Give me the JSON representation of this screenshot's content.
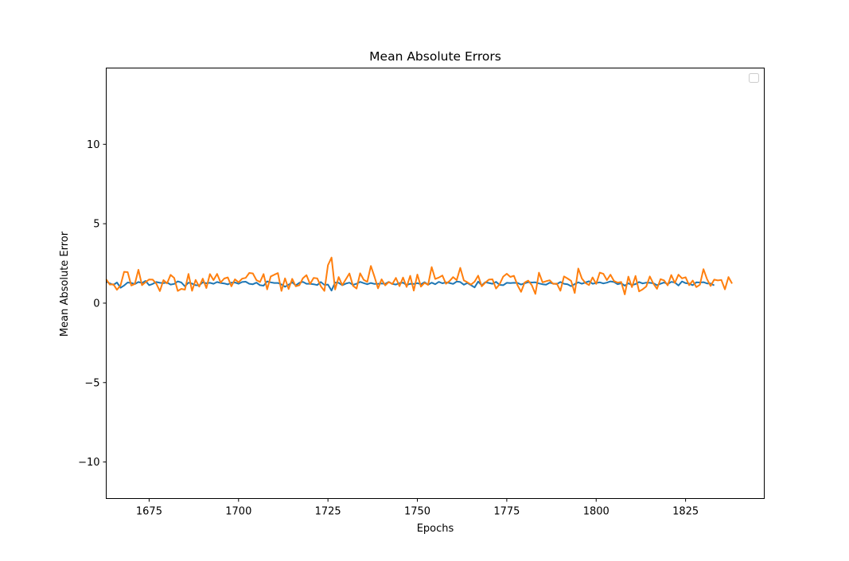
{
  "chart_data": {
    "type": "line",
    "title": "Mean Absolute Errors",
    "xlabel": "Epochs",
    "ylabel": "Mean Absolute Error",
    "xlim": [
      1663,
      1847
    ],
    "ylim": [
      -12.3,
      14.8
    ],
    "xticks": [
      1675,
      1700,
      1725,
      1750,
      1775,
      1800,
      1825
    ],
    "yticks": [
      -10,
      -5,
      0,
      5,
      10
    ],
    "ytick_labels": [
      "−10",
      "−5",
      "0",
      "5",
      "10"
    ],
    "grid": false,
    "legend": {
      "placement": "upper-right",
      "entries": []
    },
    "x_start": 1663,
    "series": [
      {
        "color": "#1f77b4",
        "values": [
          1.34,
          1.25,
          1.15,
          1.3,
          0.97,
          1.11,
          1.3,
          1.27,
          1.2,
          1.33,
          1.27,
          1.4,
          1.13,
          1.21,
          1.33,
          1.28,
          1.26,
          1.3,
          1.17,
          1.21,
          1.37,
          1.3,
          1.06,
          1.29,
          1.23,
          1.13,
          1.12,
          1.31,
          1.25,
          1.28,
          1.22,
          1.33,
          1.27,
          1.24,
          1.18,
          1.29,
          1.3,
          1.22,
          1.33,
          1.35,
          1.22,
          1.19,
          1.29,
          1.13,
          1.1,
          1.37,
          1.31,
          1.27,
          1.27,
          1.18,
          1.03,
          1.16,
          1.31,
          1.12,
          1.28,
          1.34,
          1.22,
          1.22,
          1.19,
          1.14,
          1.33,
          1.15,
          1.17,
          0.79,
          1.3,
          1.28,
          1.13,
          1.23,
          1.29,
          1.15,
          1.22,
          1.34,
          1.26,
          1.19,
          1.27,
          1.21,
          1.22,
          1.24,
          1.21,
          1.34,
          1.21,
          1.17,
          1.26,
          1.29,
          1.14,
          1.22,
          1.21,
          1.26,
          1.19,
          1.32,
          1.16,
          1.29,
          1.19,
          1.34,
          1.25,
          1.31,
          1.27,
          1.21,
          1.36,
          1.33,
          1.16,
          1.27,
          1.13,
          0.99,
          1.36,
          1.12,
          1.32,
          1.27,
          1.22,
          1.34,
          1.15,
          1.13,
          1.28,
          1.26,
          1.28,
          1.27,
          1.17,
          1.25,
          1.32,
          1.3,
          1.31,
          1.24,
          1.19,
          1.16,
          1.29,
          1.23,
          1.2,
          1.33,
          1.22,
          1.19,
          1.07,
          1.2,
          1.31,
          1.22,
          1.3,
          1.38,
          1.22,
          1.27,
          1.31,
          1.24,
          1.29,
          1.37,
          1.33,
          1.19,
          1.25,
          1.1,
          1.25,
          1.14,
          1.2,
          1.33,
          1.24,
          1.29,
          1.28,
          1.25,
          1.13,
          1.22,
          1.3,
          1.2,
          1.34,
          1.3,
          1.11,
          1.37,
          1.26,
          1.23,
          1.13,
          1.31,
          1.3,
          1.32,
          1.24,
          1.24,
          1.12
        ]
      },
      {
        "color": "#ff7f0e",
        "values": [
          1.5,
          1.17,
          1.19,
          0.84,
          1.12,
          1.97,
          1.95,
          1.11,
          1.21,
          2.1,
          1.13,
          1.32,
          1.49,
          1.48,
          1.23,
          0.76,
          1.45,
          1.24,
          1.78,
          1.59,
          0.77,
          0.9,
          0.85,
          1.84,
          0.78,
          1.46,
          1.04,
          1.54,
          0.95,
          1.83,
          1.45,
          1.84,
          1.3,
          1.55,
          1.62,
          1.06,
          1.5,
          1.31,
          1.54,
          1.59,
          1.9,
          1.87,
          1.45,
          1.33,
          1.83,
          0.87,
          1.68,
          1.79,
          1.89,
          0.77,
          1.56,
          0.89,
          1.53,
          1.06,
          1.13,
          1.57,
          1.76,
          1.2,
          1.59,
          1.56,
          1.07,
          0.77,
          2.39,
          2.87,
          0.86,
          1.64,
          1.13,
          1.5,
          1.87,
          1.09,
          0.92,
          1.88,
          1.47,
          1.34,
          2.34,
          1.67,
          0.93,
          1.5,
          1.12,
          1.33,
          1.2,
          1.59,
          1.07,
          1.61,
          1.02,
          1.72,
          0.79,
          1.8,
          1.04,
          1.28,
          1.15,
          2.27,
          1.52,
          1.61,
          1.74,
          1.22,
          1.39,
          1.64,
          1.45,
          2.22,
          1.43,
          1.31,
          1.17,
          1.35,
          1.73,
          1.06,
          1.29,
          1.48,
          1.5,
          0.92,
          1.19,
          1.67,
          1.85,
          1.65,
          1.72,
          1.13,
          0.71,
          1.3,
          1.42,
          1.13,
          0.58,
          1.92,
          1.31,
          1.38,
          1.44,
          1.21,
          1.23,
          0.78,
          1.68,
          1.55,
          1.4,
          0.64,
          2.18,
          1.55,
          1.27,
          1.14,
          1.62,
          1.21,
          1.92,
          1.85,
          1.45,
          1.79,
          1.39,
          1.29,
          1.33,
          0.55,
          1.67,
          1.01,
          1.71,
          0.74,
          0.87,
          1.05,
          1.68,
          1.23,
          0.9,
          1.51,
          1.43,
          1.12,
          1.77,
          1.27,
          1.79,
          1.56,
          1.63,
          1.13,
          1.42,
          1.01,
          1.16,
          2.14,
          1.51,
          1.08,
          1.48,
          1.43,
          1.46,
          0.87,
          1.64,
          1.23
        ]
      }
    ]
  }
}
